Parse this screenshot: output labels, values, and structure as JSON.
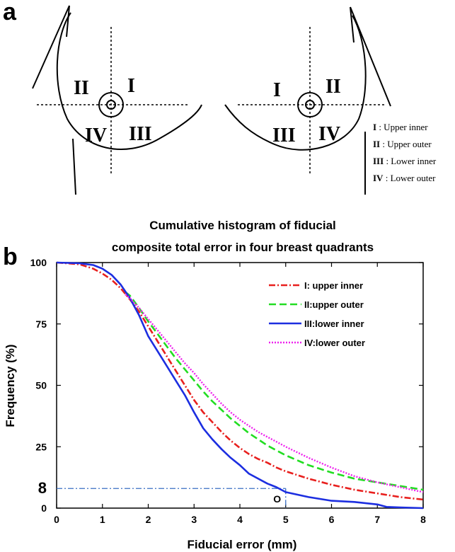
{
  "panel_a": {
    "label": "a",
    "left_breast": {
      "q1": "I",
      "q2": "II",
      "q3": "III",
      "q4": "IV"
    },
    "right_breast": {
      "q1": "I",
      "q2": "II",
      "q3": "III",
      "q4": "IV"
    },
    "legend": [
      {
        "numeral": "I",
        "text": " : Upper inner"
      },
      {
        "numeral": "II",
        "text": " : Upper outer"
      },
      {
        "numeral": "III",
        "text": " : Lower inner"
      },
      {
        "numeral": "IV",
        "text": " : Lower outer"
      }
    ]
  },
  "panel_b": {
    "label": "b"
  },
  "chart_data": {
    "type": "line",
    "title_line1": "Cumulative histogram of fiducial",
    "title_line2": "composite total error in four breast quadrants",
    "xlabel": "Fiducial error (mm)",
    "ylabel": "Frequency (%)",
    "xlim": [
      0,
      8
    ],
    "ylim": [
      0,
      100
    ],
    "x_ticks": [
      "0",
      "1",
      "2",
      "3",
      "4",
      "5",
      "6",
      "7",
      "8"
    ],
    "y_ticks": [
      "0",
      "25",
      "50",
      "75",
      "100"
    ],
    "grid": false,
    "legend_position": "top-right",
    "annotation": {
      "y_value": 8,
      "x_value": 5,
      "y_label": "8",
      "x_label": "O"
    },
    "colors": {
      "I": "#e8201e",
      "II": "#22dd22",
      "III": "#1c2ee0",
      "IV": "#ee22ee",
      "annotation": "#3a6fc4"
    },
    "series": [
      {
        "name": "I: upper inner",
        "key": "I",
        "style": "dashdot",
        "x": [
          0,
          0.5,
          0.8,
          1.0,
          1.2,
          1.4,
          1.6,
          1.8,
          2.0,
          2.2,
          2.4,
          2.6,
          2.8,
          3.0,
          3.2,
          3.4,
          3.6,
          3.8,
          4.0,
          4.2,
          4.4,
          4.6,
          4.8,
          5.0,
          5.5,
          6.0,
          6.5,
          7.0,
          7.5,
          8.0
        ],
        "y": [
          100,
          99.3,
          97.5,
          95.5,
          93,
          89.5,
          85,
          80,
          74,
          68,
          62,
          56,
          50,
          44,
          39,
          35,
          31,
          27.5,
          24.5,
          22,
          20,
          18.5,
          16.5,
          15,
          12,
          9.5,
          7.5,
          6,
          4.5,
          3.5
        ]
      },
      {
        "name": "II:upper outer",
        "key": "II",
        "style": "dashed",
        "x": [
          1.5,
          1.6,
          1.8,
          2.0,
          2.2,
          2.4,
          2.6,
          2.8,
          3.0,
          3.2,
          3.4,
          3.6,
          3.8,
          4.0,
          4.2,
          4.4,
          4.6,
          4.8,
          5.0,
          5.5,
          6.0,
          6.5,
          7.0,
          7.5,
          8.0
        ],
        "y": [
          88,
          86.5,
          81.5,
          76,
          71,
          66,
          61,
          56.5,
          52,
          47.5,
          43.5,
          40,
          36.5,
          33.5,
          30.5,
          28,
          25.5,
          23.5,
          21.5,
          17.5,
          14.5,
          12,
          10.5,
          9,
          7.5
        ]
      },
      {
        "name": "III:lower inner",
        "key": "III",
        "style": "solid",
        "x": [
          0,
          0.5,
          0.8,
          1.0,
          1.2,
          1.4,
          1.6,
          1.8,
          2.0,
          2.2,
          2.4,
          2.6,
          2.8,
          3.0,
          3.2,
          3.4,
          3.6,
          3.8,
          4.0,
          4.2,
          4.4,
          4.6,
          4.8,
          5.0,
          5.5,
          6.0,
          6.5,
          7.0,
          7.2,
          7.5,
          8.0
        ],
        "y": [
          100,
          99.7,
          99,
          97.5,
          95,
          91,
          85.5,
          78.5,
          70,
          64,
          58,
          52,
          46,
          39,
          32.5,
          28,
          24,
          20.5,
          17.5,
          14,
          12,
          10,
          8.5,
          6.5,
          4.5,
          3,
          2.5,
          1.5,
          0.5,
          0.3,
          0
        ]
      },
      {
        "name": "IV:lower outer",
        "key": "IV",
        "style": "dotted",
        "x": [
          1.5,
          1.6,
          1.8,
          2.0,
          2.2,
          2.4,
          2.6,
          2.8,
          3.0,
          3.2,
          3.4,
          3.6,
          3.8,
          4.0,
          4.2,
          4.4,
          4.6,
          4.8,
          5.0,
          5.5,
          6.0,
          6.5,
          7.0,
          7.5,
          8.0
        ],
        "y": [
          87,
          85.5,
          81.5,
          77,
          72.5,
          68,
          63.5,
          59,
          55,
          50.5,
          46.5,
          42.5,
          39,
          36,
          33.5,
          31,
          29,
          27,
          25,
          20.5,
          16.5,
          13,
          10.5,
          8.5,
          6.5
        ]
      }
    ]
  }
}
